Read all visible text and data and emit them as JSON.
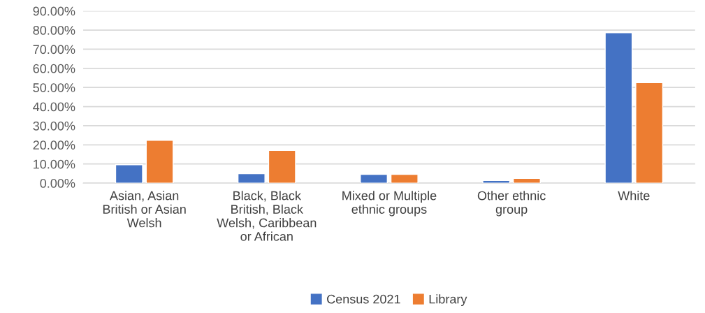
{
  "chart_data": {
    "type": "bar",
    "categories": [
      "Asian, Asian\nBritish or Asian\nWelsh",
      "Black, Black\nBritish, Black\nWelsh, Caribbean\nor African",
      "Mixed or Multiple\nethnic groups",
      "Other ethnic\ngroup",
      "White"
    ],
    "series": [
      {
        "name": "Census 2021",
        "color": "#4472c4",
        "values": [
          9.6,
          4.9,
          4.6,
          1.4,
          78.6
        ]
      },
      {
        "name": "Library",
        "color": "#ed7d31",
        "values": [
          22.4,
          17.1,
          4.6,
          2.5,
          52.5
        ]
      }
    ],
    "ylim": [
      0,
      90
    ],
    "yticks": [
      {
        "value": 0,
        "label": "0.00%"
      },
      {
        "value": 10,
        "label": "10.00%"
      },
      {
        "value": 20,
        "label": "20.00%"
      },
      {
        "value": 30,
        "label": "30.00%"
      },
      {
        "value": 40,
        "label": "40.00%"
      },
      {
        "value": 50,
        "label": "50.00%"
      },
      {
        "value": 60,
        "label": "60.00%"
      },
      {
        "value": 70,
        "label": "70.00%"
      },
      {
        "value": 80,
        "label": "80.00%"
      },
      {
        "value": 90,
        "label": "90.00%"
      }
    ],
    "grid": "y",
    "legend": "bottom"
  }
}
